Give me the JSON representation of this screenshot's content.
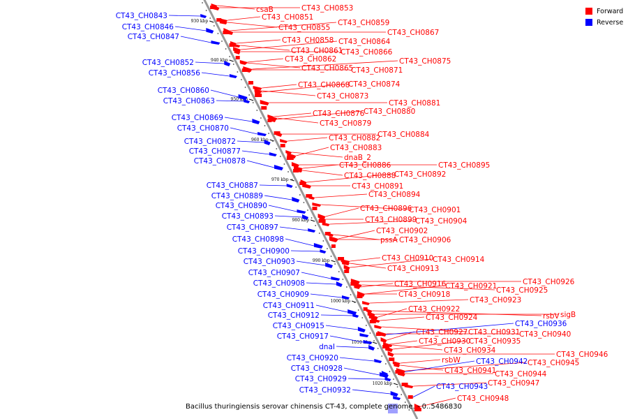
{
  "caption": "Bacillus thuringiensis serovar chinensis CT-43, complete genome. - 0..5486830",
  "legend": {
    "forward": {
      "label": "Forward",
      "color": "#ff0000"
    },
    "reverse": {
      "label": "Reverse",
      "color": "#0000ff"
    }
  },
  "colors": {
    "forward": "#ff0000",
    "reverse": "#0000ff",
    "backbone": "#999999"
  },
  "ticks": [
    "930 kbp",
    "940 kbp",
    "950 kbp",
    "960 kbp",
    "970 kbp",
    "980 kbp",
    "990 kbp",
    "1000 kbp",
    "1010 kbp",
    "1020 kbp"
  ],
  "forward_labels": [
    "csaB",
    "CT43_CH0853",
    "CT43_CH0851",
    "CT43_CH0859",
    "CT43_CH0855",
    "CT43_CH0867",
    "CT43_CH0858",
    "CT43_CH0864",
    "CT43_CH0861",
    "CT43_CH0866",
    "CT43_CH0862",
    "CT43_CH0875",
    "CT43_CH0865",
    "CT43_CH0871",
    "CT43_CH0868",
    "CT43_CH0874",
    "CT43_CH0873",
    "CT43_CH0881",
    "CT43_CH0876",
    "CT43_CH0880",
    "CT43_CH0879",
    "CT43_CH0884",
    "CT43_CH0882",
    "CT43_CH0883",
    "dnaB_2",
    "CT43_CH0895",
    "CT43_CH0886",
    "CT43_CH0892",
    "CT43_CH0888",
    "CT43_CH0891",
    "CT43_CH0894",
    "CT43_CH0896",
    "CT43_CH0901",
    "CT43_CH0899",
    "CT43_CH0904",
    "CT43_CH0902",
    "pssA",
    "CT43_CH0906",
    "CT43_CH0910",
    "CT43_CH0914",
    "CT43_CH0913",
    "CT43_CH0926",
    "CT43_CH0916",
    "CT43_CH0921",
    "CT43_CH0925",
    "CT43_CH0918",
    "CT43_CH0923",
    "CT43_CH0922",
    "rsbV",
    "sigB",
    "CT43_CH0924",
    "CT43_CH0927",
    "CT43_CH0931",
    "CT43_CH0940",
    "CT43_CH0930",
    "CT43_CH0935",
    "CT43_CH0934",
    "CT43_CH0946",
    "rsbW",
    "CT43_CH0945",
    "CT43_CH0941",
    "CT43_CH0944",
    "CT43_CH0947",
    "CT43_CH0948"
  ],
  "reverse_labels": [
    "CT43_CH0843",
    "CT43_CH0846",
    "CT43_CH0847",
    "CT43_CH0852",
    "CT43_CH0856",
    "CT43_CH0860",
    "CT43_CH0863",
    "CT43_CH0869",
    "CT43_CH0870",
    "CT43_CH0872",
    "CT43_CH0877",
    "CT43_CH0878",
    "CT43_CH0887",
    "CT43_CH0889",
    "CT43_CH0890",
    "CT43_CH0893",
    "CT43_CH0897",
    "CT43_CH0898",
    "CT43_CH0900",
    "CT43_CH0903",
    "CT43_CH0907",
    "CT43_CH0908",
    "CT43_CH0909",
    "CT43_CH0911",
    "CT43_CH0912",
    "CT43_CH0915",
    "CT43_CH0917",
    "dnaI",
    "CT43_CH0920",
    "CT43_CH0928",
    "CT43_CH0929",
    "CT43_CH0932",
    "CT43_CH0936",
    "CT43_CH0942",
    "CT43_CH0943"
  ]
}
